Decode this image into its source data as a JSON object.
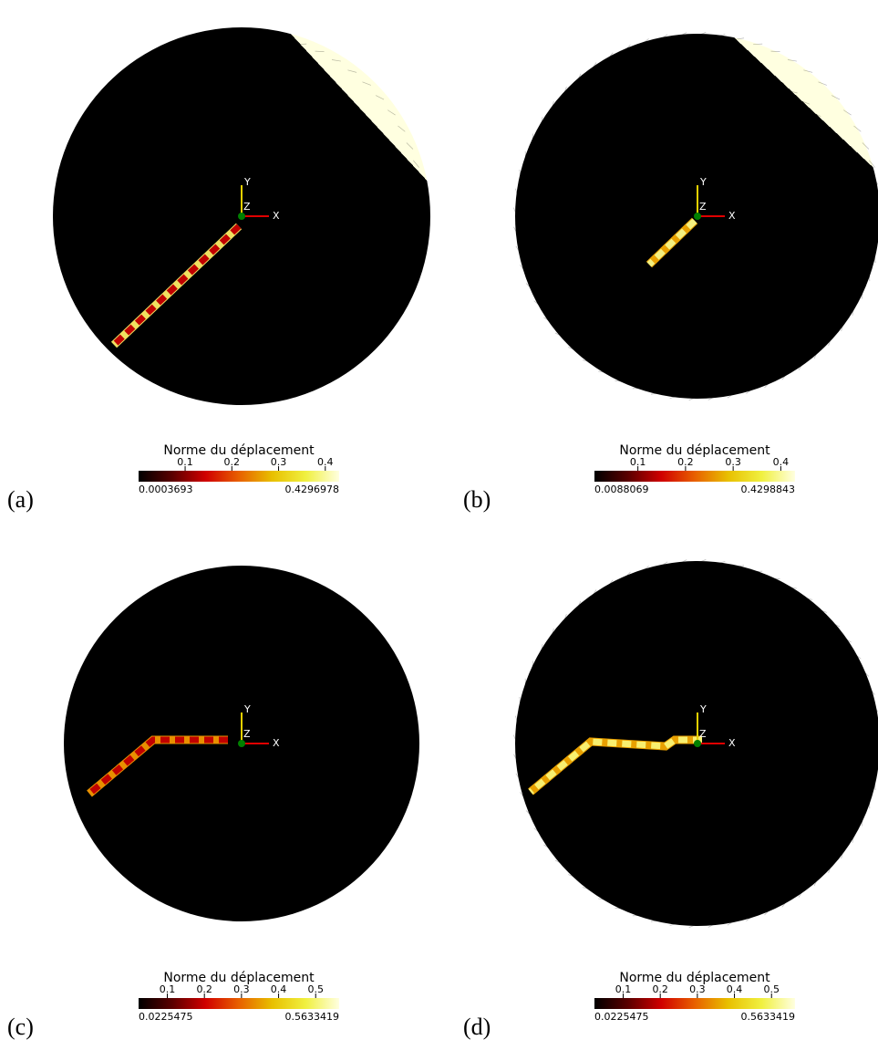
{
  "colormap": [
    "#000000",
    "#5a0000",
    "#d00000",
    "#e86000",
    "#e8c000",
    "#f0f040",
    "#ffffe0"
  ],
  "panels": [
    {
      "label": "(a)",
      "axes": {
        "x": "X",
        "y": "Y",
        "z": "Z"
      },
      "colorbar": {
        "title": "Norme du déplacement",
        "ticks": [
          0.1,
          0.2,
          0.3,
          0.4
        ],
        "min": 0.0003693,
        "max": 0.4296978
      }
    },
    {
      "label": "(b)",
      "axes": {
        "x": "X",
        "y": "Y",
        "z": "Z"
      },
      "colorbar": {
        "title": "Norme du déplacement",
        "ticks": [
          0.1,
          0.2,
          0.3,
          0.4
        ],
        "min": 0.0088069,
        "max": 0.4298843
      }
    },
    {
      "label": "(c)",
      "axes": {
        "x": "X",
        "y": "Y",
        "z": "Z"
      },
      "colorbar": {
        "title": "Norme du déplacement",
        "ticks": [
          0.1,
          0.2,
          0.3,
          0.4,
          0.5
        ],
        "min": 0.0225475,
        "max": 0.5633419
      }
    },
    {
      "label": "(d)",
      "axes": {
        "x": "X",
        "y": "Y",
        "z": "Z"
      },
      "colorbar": {
        "title": "Norme du déplacement",
        "ticks": [
          0.1,
          0.2,
          0.3,
          0.4,
          0.5
        ],
        "min": 0.0225475,
        "max": 0.5633419
      }
    }
  ]
}
